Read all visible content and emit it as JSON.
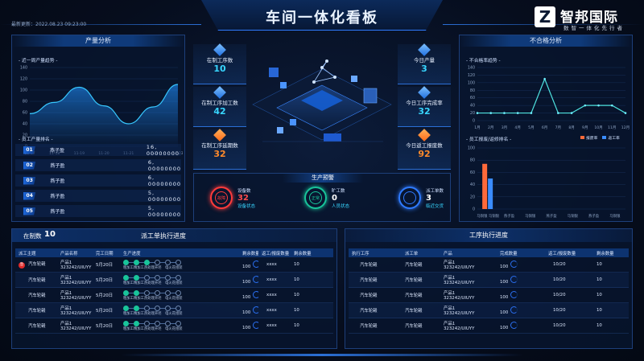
{
  "header": {
    "title": "车间一体化看板",
    "update_label": "最新更新：",
    "update_time": "2022.08.23  09:23:00",
    "logo_cn": "智邦国际",
    "logo_sub": "数智一体化先行者"
  },
  "colors": {
    "accent": "#2f7bff",
    "cyan": "#38d6ff",
    "orange": "#ff8a2b",
    "red": "#ff3b3b",
    "green": "#19c49a"
  },
  "production": {
    "title": "产量分析",
    "trend_title": "- 近一周产量趋势 -",
    "rank_title": "- 员工产量排名 -",
    "ranking": [
      {
        "rank": "01",
        "name": "燕子盈",
        "value": "16, 00000000"
      },
      {
        "rank": "02",
        "name": "燕子盈",
        "value": "6, 00000000"
      },
      {
        "rank": "03",
        "name": "燕子盈",
        "value": "6, 00000000"
      },
      {
        "rank": "04",
        "name": "燕子盈",
        "value": "5, 00000000"
      },
      {
        "rank": "05",
        "name": "燕子盈",
        "value": "5, 00000000"
      }
    ]
  },
  "kpis_left": [
    {
      "label": "在制工序数",
      "value": "10",
      "color": "#38d6ff"
    },
    {
      "label": "在制工序加工数",
      "value": "42",
      "color": "#38d6ff"
    },
    {
      "label": "在制工序延期数",
      "value": "32",
      "color": "#ff8a2b"
    }
  ],
  "kpis_right": [
    {
      "label": "今日产量",
      "value": "3",
      "color": "#38d6ff"
    },
    {
      "label": "今日工序完成率",
      "value": "32",
      "color": "#38d6ff"
    },
    {
      "label": "今日返工报废数",
      "value": "92",
      "color": "#ff8a2b"
    }
  ],
  "warnings": {
    "title": "生产预警",
    "items": [
      {
        "ring": "故障",
        "title": "设备数",
        "value": "32",
        "status": "设备状态",
        "color": "#ff3b3b"
      },
      {
        "ring": "正常",
        "title": "旷工数",
        "value": "0",
        "status": "人员状态",
        "color": "#19c49a"
      },
      {
        "ring": "",
        "title": "派工单数",
        "value": "3",
        "status": "临近交货",
        "color": "#2f7bff"
      }
    ]
  },
  "defects": {
    "title": "不合格分析",
    "rate_title": "- 不合格率趋势 -",
    "rank_title": "- 员工报废/返修排名 -",
    "legend": [
      "报废率",
      "返工率"
    ]
  },
  "chart_data": [
    {
      "type": "area",
      "title": "",
      "x": [
        "11-17",
        "11-18",
        "11-19",
        "11-20",
        "11-21",
        "11-22",
        "11-23"
      ],
      "ylim": [
        0,
        140
      ],
      "yticks": [
        "140",
        "120",
        "100",
        "80",
        "60",
        "40",
        "20",
        "0"
      ],
      "values": [
        58,
        78,
        105,
        72,
        40,
        70,
        110
      ]
    },
    {
      "type": "line",
      "title": "",
      "x": [
        "1月",
        "2月",
        "3月",
        "4月",
        "5月",
        "6月",
        "7月",
        "8月",
        "9月",
        "10月",
        "11月",
        "12月"
      ],
      "ylim": [
        0,
        140
      ],
      "yticks": [
        "140",
        "120",
        "100",
        "80",
        "60",
        "40",
        "20",
        "0"
      ],
      "values": [
        20,
        20,
        20,
        20,
        20,
        110,
        20,
        20,
        40,
        40,
        40,
        20
      ]
    },
    {
      "type": "bar",
      "title": "",
      "categories": [
        "马铜银 马铜银",
        "燕子盈",
        "马铜银",
        "燕子盈",
        "马铜银",
        "燕子盈",
        "马铜银"
      ],
      "ylim": [
        0,
        100
      ],
      "yticks": [
        "100",
        "80",
        "60",
        "40",
        "20",
        "0"
      ],
      "series": [
        {
          "name": "报废率",
          "values": [
            74,
            0,
            0,
            0,
            0,
            0,
            0
          ]
        },
        {
          "name": "返工率",
          "values": [
            50,
            0,
            0,
            0,
            0,
            0,
            0
          ]
        }
      ]
    }
  ],
  "dispatch": {
    "in_progress_label": "在制数",
    "in_progress_value": "10",
    "title": "派工单执行进度",
    "columns": [
      "派工主题",
      "产品名称",
      "完工日期",
      "生产进度",
      "剩余数量",
      "返工/报废数量",
      "剩余数量"
    ],
    "steps": [
      "粗加工",
      "精加工",
      "热处理",
      "开坯",
      "电火花",
      "组装"
    ],
    "rows": [
      {
        "badge": "急",
        "topic": "汽车轮毂",
        "product": "产品1",
        "code": "323242/UIUYY",
        "date": "5月20日",
        "done": 3,
        "remain": "100",
        "rework": "xxxx",
        "left": "10"
      },
      {
        "badge": "",
        "topic": "汽车轮毂",
        "product": "产品1",
        "code": "323242/UIUYY",
        "date": "5月20日",
        "done": 2,
        "remain": "100",
        "rework": "xxxx",
        "left": "10"
      },
      {
        "badge": "",
        "topic": "汽车轮毂",
        "product": "产品1",
        "code": "323242/UIUYY",
        "date": "5月20日",
        "done": 2,
        "remain": "100",
        "rework": "xxxx",
        "left": "10"
      },
      {
        "badge": "",
        "topic": "汽车轮毂",
        "product": "产品1",
        "code": "323242/UIUYY",
        "date": "5月20日",
        "done": 2,
        "remain": "100",
        "rework": "xxxx",
        "left": "10"
      },
      {
        "badge": "",
        "topic": "汽车轮毂",
        "product": "产品1",
        "code": "323242/UIUYY",
        "date": "5月20日",
        "done": 2,
        "remain": "100",
        "rework": "xxxx",
        "left": "10"
      }
    ]
  },
  "process": {
    "title": "工序执行进度",
    "columns": [
      "执行工序",
      "派工单",
      "产品",
      "完成数量",
      "返工/报废数量",
      "剩余数量"
    ],
    "rows": [
      {
        "op": "汽车轮毂",
        "order": "汽车轮毂",
        "product": "产品1",
        "code": "323242/UIUYY",
        "done": "100",
        "rework": "10/20",
        "left": "10"
      },
      {
        "op": "汽车轮毂",
        "order": "汽车轮毂",
        "product": "产品1",
        "code": "323242/UIUYY",
        "done": "100",
        "rework": "10/20",
        "left": "10"
      },
      {
        "op": "汽车轮毂",
        "order": "汽车轮毂",
        "product": "产品1",
        "code": "323242/UIUYY",
        "done": "100",
        "rework": "10/20",
        "left": "10"
      },
      {
        "op": "汽车轮毂",
        "order": "汽车轮毂",
        "product": "产品1",
        "code": "323242/UIUYY",
        "done": "100",
        "rework": "10/20",
        "left": "10"
      },
      {
        "op": "汽车轮毂",
        "order": "汽车轮毂",
        "product": "产品1",
        "code": "323242/UIUYY",
        "done": "100",
        "rework": "10/20",
        "left": "10"
      }
    ]
  }
}
